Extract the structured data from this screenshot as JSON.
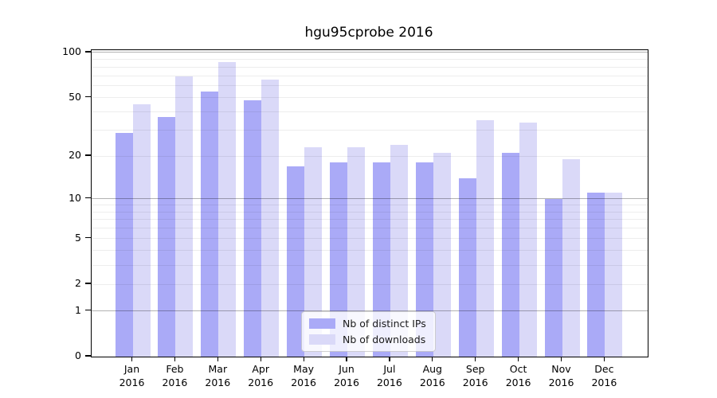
{
  "title": "hgu95cprobe 2016",
  "colors": {
    "distinct_ips_bar": "#aaaaf7",
    "downloads_bar": "#dad9f8",
    "axis": "#000000",
    "grid_minor": "rgba(0,0,0,0.07)",
    "grid_major": "rgba(0,0,0,0.30)"
  },
  "legend": {
    "items": [
      {
        "label": "Nb of distinct IPs"
      },
      {
        "label": "Nb of downloads"
      }
    ]
  },
  "chart_data": {
    "type": "bar",
    "title": "hgu95cprobe 2016",
    "categories": [
      "Jan 2016",
      "Feb 2016",
      "Mar 2016",
      "Apr 2016",
      "May 2016",
      "Jun 2016",
      "Jul 2016",
      "Aug 2016",
      "Sep 2016",
      "Oct 2016",
      "Nov 2016",
      "Dec 2016"
    ],
    "series": [
      {
        "name": "Nb of distinct IPs",
        "color": "#aaaaf7",
        "values": [
          29,
          37,
          55,
          48,
          17,
          18,
          18,
          18,
          14,
          21,
          10,
          11
        ]
      },
      {
        "name": "Nb of downloads",
        "color": "#dad9f8",
        "values": [
          45,
          69,
          86,
          66,
          23,
          23,
          24,
          21,
          35,
          34,
          19,
          11
        ]
      }
    ],
    "xlabel": "",
    "ylabel": "",
    "y_ticks": [
      0,
      1,
      2,
      5,
      10,
      20,
      50,
      100
    ],
    "y_minor_gridlines": [
      2,
      3,
      4,
      5,
      6,
      7,
      8,
      9,
      20,
      30,
      40,
      50,
      60,
      70,
      80,
      90
    ],
    "y_major_gridlines": [
      1,
      10,
      100
    ],
    "y_scale": "log10(1+v)",
    "ylim": [
      0,
      100
    ],
    "grid": "horizontal",
    "legend_position": "inside-bottom-center"
  }
}
